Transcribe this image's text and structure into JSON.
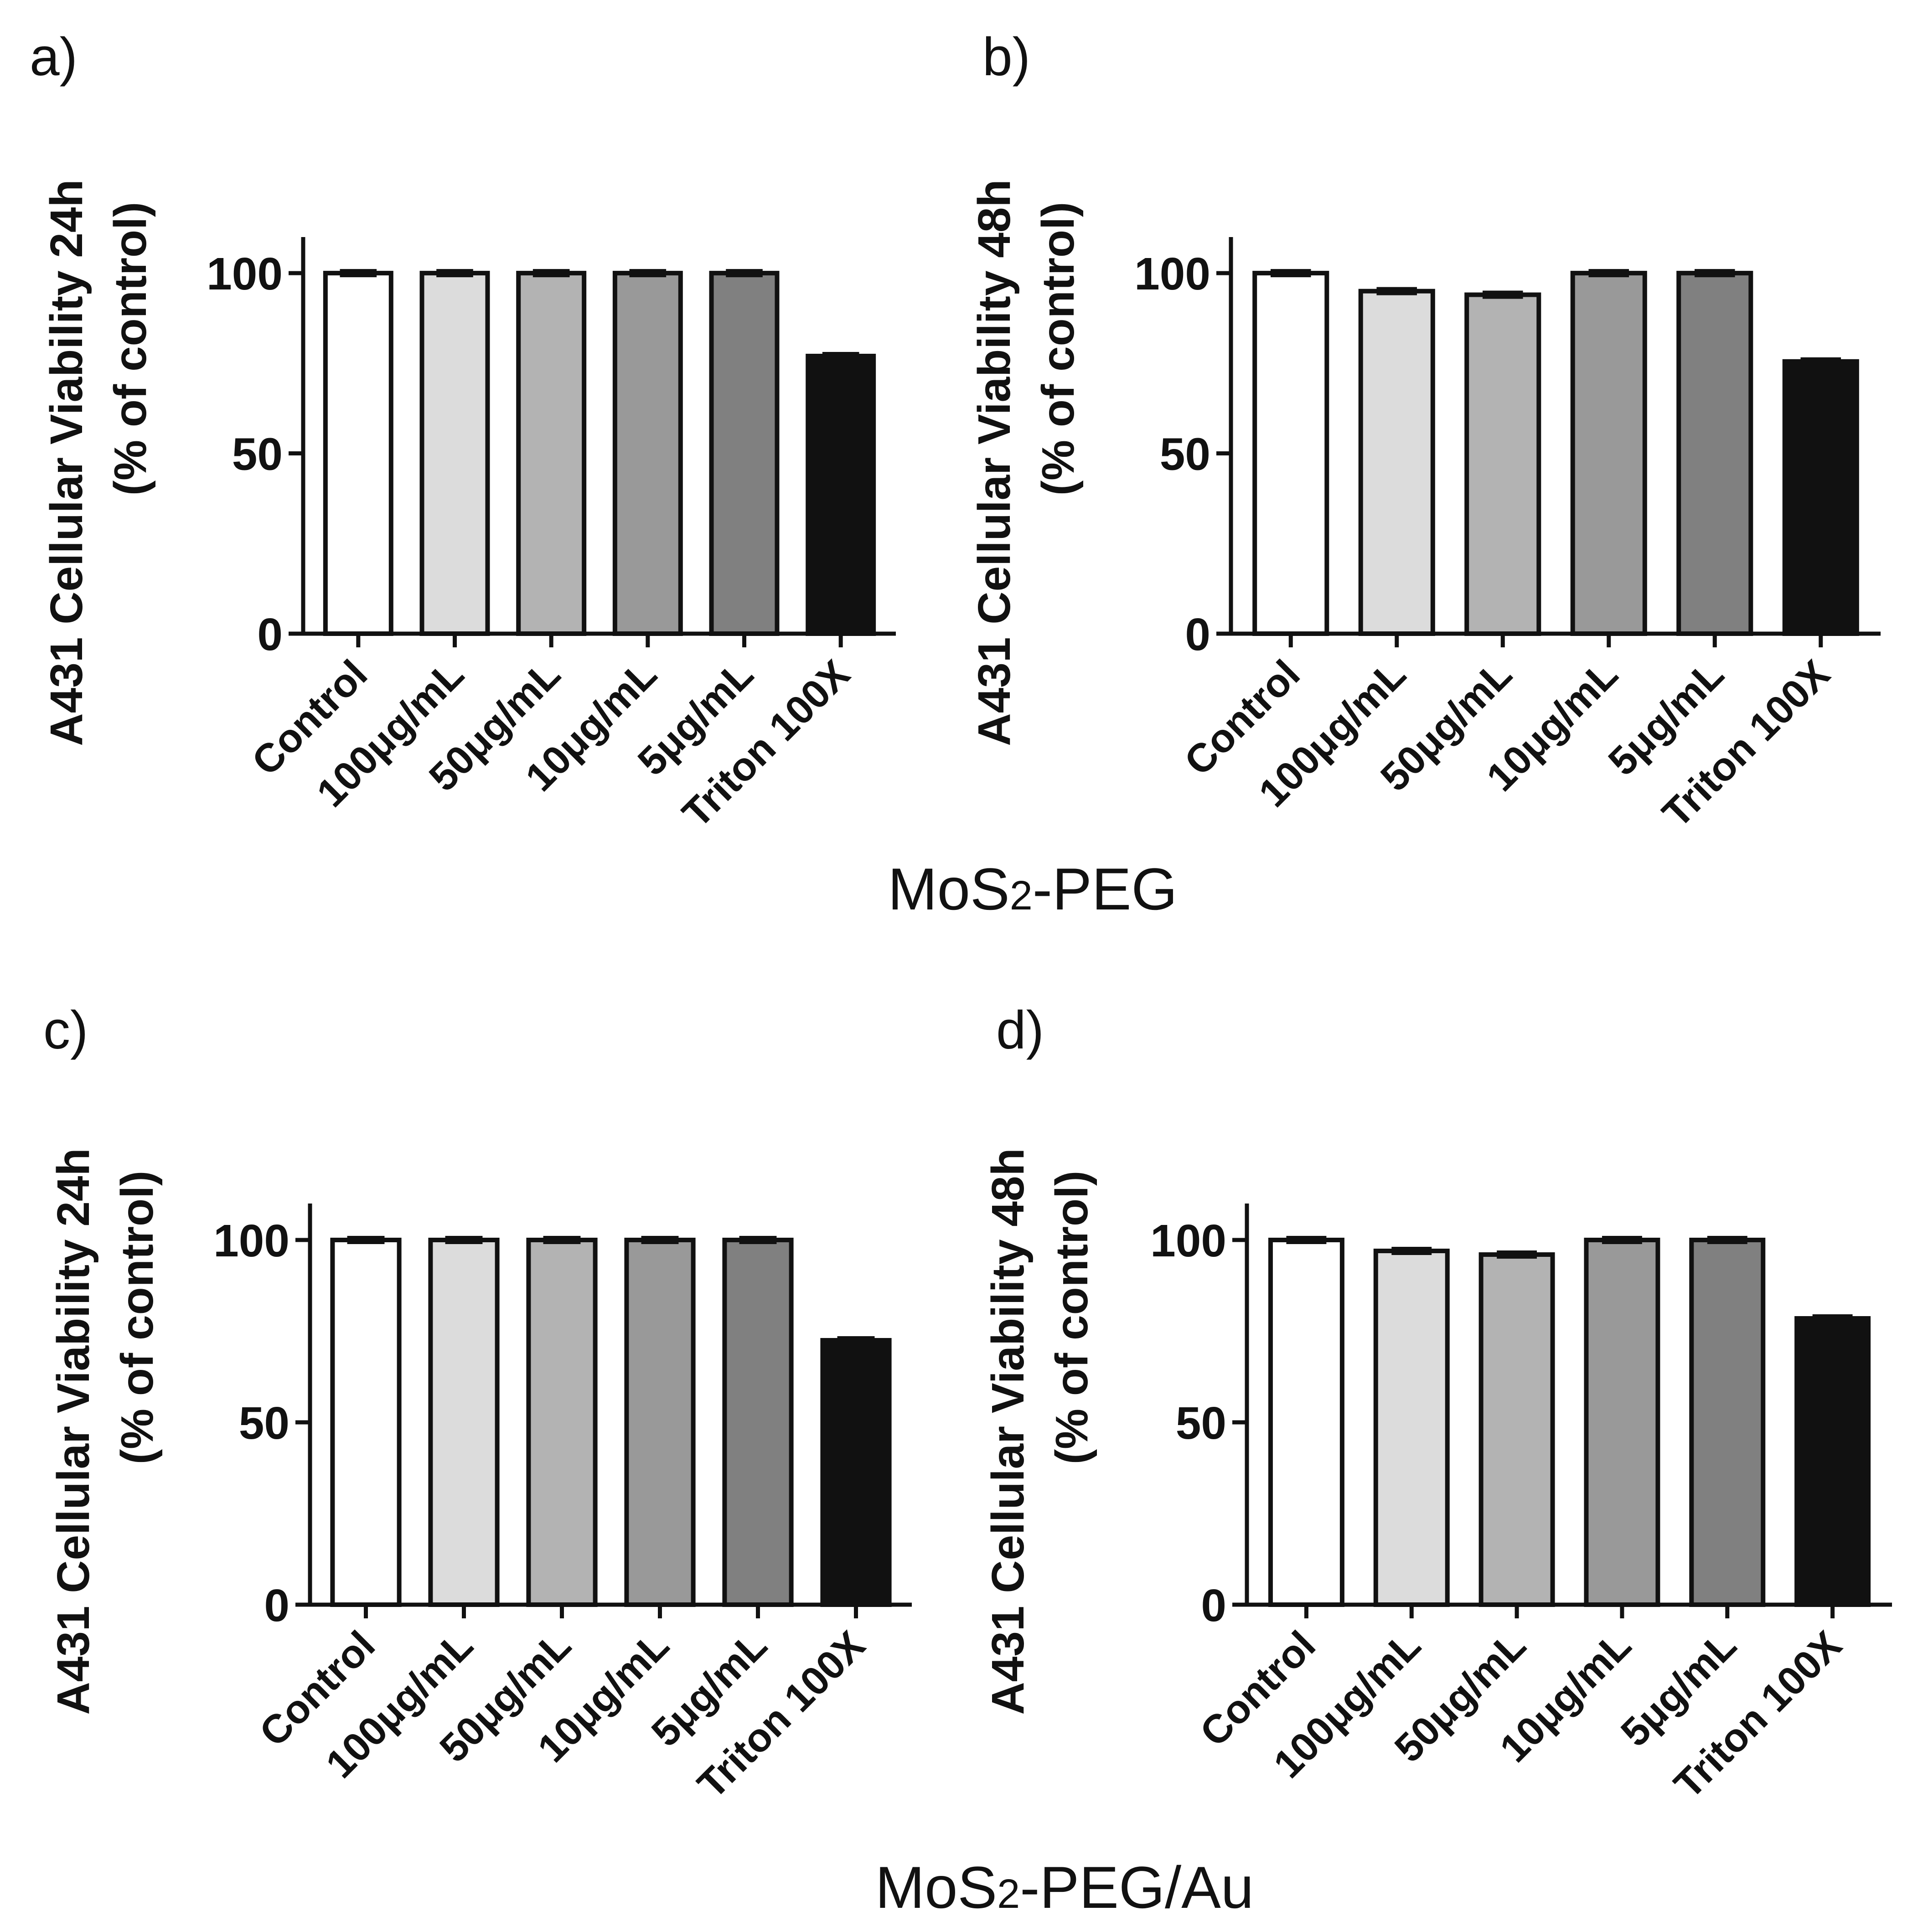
{
  "figure": {
    "group_titles": [
      {
        "main": "MoS",
        "sub": "2",
        "rest": "-PEG"
      },
      {
        "main": "MoS",
        "sub": "2",
        "rest": "-PEG/Au"
      }
    ]
  },
  "colors": {
    "series": [
      "#ffffff",
      "#dcdcdc",
      "#b3b3b3",
      "#999999",
      "#808080",
      "#111111"
    ],
    "axis": "#111111"
  },
  "chart_data": [
    {
      "type": "bar",
      "panel": "a)",
      "ylabel_line1": "A431 Cellular Viability 24h",
      "ylabel_line2": "(% of control)",
      "categories": [
        "Control",
        "100μg/mL",
        "50μg/mL",
        "10μg/mL",
        "5μg/mL",
        "Triton 100X"
      ],
      "values": [
        100,
        100,
        100,
        100,
        100,
        77
      ],
      "ylim": [
        0,
        110
      ],
      "yticks": [
        0,
        50,
        100
      ]
    },
    {
      "type": "bar",
      "panel": "b)",
      "ylabel_line1": "A431 Cellular Viability 48h",
      "ylabel_line2": "(% of control)",
      "categories": [
        "Control",
        "100μg/mL",
        "50μg/mL",
        "10μg/mL",
        "5μg/mL",
        "Triton 100X"
      ],
      "values": [
        100,
        95,
        94,
        100,
        100,
        75.5
      ],
      "ylim": [
        0,
        110
      ],
      "yticks": [
        0,
        50,
        100
      ]
    },
    {
      "type": "bar",
      "panel": "c)",
      "ylabel_line1": "A431 Cellular Viability 24h",
      "ylabel_line2": "(% of control)",
      "categories": [
        "Control",
        "100μg/mL",
        "50μg/mL",
        "10μg/mL",
        "5μg/mL",
        "Triton 100X"
      ],
      "values": [
        100,
        100,
        100,
        100,
        100,
        72.5
      ],
      "ylim": [
        0,
        110
      ],
      "yticks": [
        0,
        50,
        100
      ]
    },
    {
      "type": "bar",
      "panel": "d)",
      "ylabel_line1": "A431 Cellular Viability 48h",
      "ylabel_line2": "(% of control)",
      "categories": [
        "Control",
        "100μg/mL",
        "50μg/mL",
        "10μg/mL",
        "5μg/mL",
        "Triton 100X"
      ],
      "values": [
        100,
        97,
        96,
        100,
        100,
        78.5
      ],
      "ylim": [
        0,
        110
      ],
      "yticks": [
        0,
        50,
        100
      ]
    }
  ]
}
